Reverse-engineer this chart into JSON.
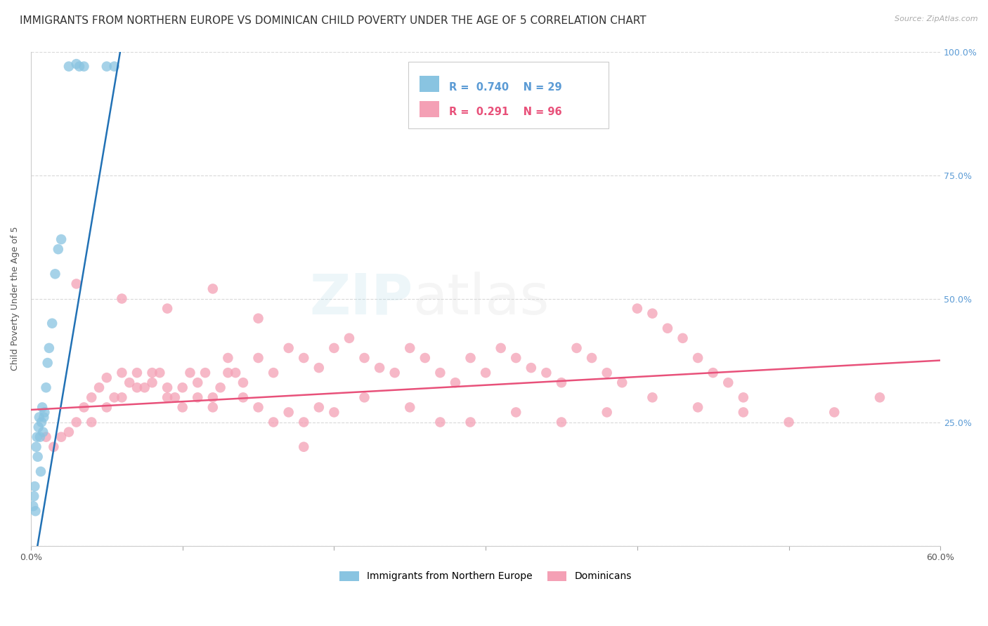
{
  "title": "IMMIGRANTS FROM NORTHERN EUROPE VS DOMINICAN CHILD POVERTY UNDER THE AGE OF 5 CORRELATION CHART",
  "source": "Source: ZipAtlas.com",
  "ylabel": "Child Poverty Under the Age of 5",
  "legend_blue_label": "Immigrants from Northern Europe",
  "legend_pink_label": "Dominicans",
  "legend_blue_R": "R = 0.740",
  "legend_blue_N": "N = 29",
  "legend_pink_R": "R = 0.291",
  "legend_pink_N": "N = 96",
  "watermark": "ZIPatlas",
  "blue_scatter_x": [
    0.15,
    0.2,
    0.25,
    0.3,
    0.35,
    0.4,
    0.45,
    0.5,
    0.55,
    0.6,
    0.65,
    0.7,
    0.75,
    0.8,
    0.85,
    0.9,
    1.0,
    1.1,
    1.2,
    1.4,
    1.6,
    1.8,
    2.0,
    2.5,
    3.0,
    3.5,
    5.0,
    5.5,
    3.2
  ],
  "blue_scatter_y": [
    8.0,
    10.0,
    12.0,
    7.0,
    20.0,
    22.0,
    18.0,
    24.0,
    26.0,
    22.0,
    15.0,
    25.0,
    28.0,
    23.0,
    26.0,
    27.0,
    32.0,
    37.0,
    40.0,
    45.0,
    55.0,
    60.0,
    62.0,
    97.0,
    97.5,
    97.0,
    97.0,
    97.0,
    97.0
  ],
  "pink_scatter_x": [
    1.0,
    1.5,
    2.0,
    2.5,
    3.0,
    3.5,
    4.0,
    4.5,
    5.0,
    5.5,
    6.0,
    6.5,
    7.0,
    7.5,
    8.0,
    8.5,
    9.0,
    9.5,
    10.0,
    10.5,
    11.0,
    11.5,
    12.0,
    12.5,
    13.0,
    13.5,
    14.0,
    15.0,
    16.0,
    17.0,
    18.0,
    19.0,
    20.0,
    21.0,
    22.0,
    23.0,
    24.0,
    25.0,
    26.0,
    27.0,
    28.0,
    29.0,
    30.0,
    31.0,
    32.0,
    33.0,
    34.0,
    35.0,
    36.0,
    37.0,
    38.0,
    39.0,
    40.0,
    41.0,
    42.0,
    43.0,
    44.0,
    45.0,
    46.0,
    47.0,
    4.0,
    5.0,
    6.0,
    7.0,
    8.0,
    9.0,
    10.0,
    11.0,
    12.0,
    13.0,
    14.0,
    15.0,
    16.0,
    17.0,
    18.0,
    19.0,
    20.0,
    22.0,
    25.0,
    27.0,
    29.0,
    32.0,
    35.0,
    38.0,
    41.0,
    44.0,
    47.0,
    50.0,
    53.0,
    56.0,
    3.0,
    6.0,
    9.0,
    12.0,
    15.0,
    18.0
  ],
  "pink_scatter_y": [
    22.0,
    20.0,
    22.0,
    23.0,
    25.0,
    28.0,
    30.0,
    32.0,
    34.0,
    30.0,
    35.0,
    33.0,
    35.0,
    32.0,
    33.0,
    35.0,
    32.0,
    30.0,
    28.0,
    35.0,
    33.0,
    35.0,
    30.0,
    32.0,
    38.0,
    35.0,
    33.0,
    38.0,
    35.0,
    40.0,
    38.0,
    36.0,
    40.0,
    42.0,
    38.0,
    36.0,
    35.0,
    40.0,
    38.0,
    35.0,
    33.0,
    38.0,
    35.0,
    40.0,
    38.0,
    36.0,
    35.0,
    33.0,
    40.0,
    38.0,
    35.0,
    33.0,
    48.0,
    47.0,
    44.0,
    42.0,
    38.0,
    35.0,
    33.0,
    30.0,
    25.0,
    28.0,
    30.0,
    32.0,
    35.0,
    30.0,
    32.0,
    30.0,
    28.0,
    35.0,
    30.0,
    28.0,
    25.0,
    27.0,
    25.0,
    28.0,
    27.0,
    30.0,
    28.0,
    25.0,
    25.0,
    27.0,
    25.0,
    27.0,
    30.0,
    28.0,
    27.0,
    25.0,
    27.0,
    30.0,
    53.0,
    50.0,
    48.0,
    52.0,
    46.0,
    20.0
  ],
  "blue_color": "#89c4e1",
  "pink_color": "#f4a0b5",
  "blue_line_color": "#2171b5",
  "pink_line_color": "#e8517a",
  "background_color": "#ffffff",
  "grid_color": "#d9d9d9",
  "xlim_pct": [
    0,
    60
  ],
  "ylim_pct": [
    0,
    100
  ],
  "title_fontsize": 11,
  "axis_label_fontsize": 9,
  "tick_fontsize": 9,
  "right_tick_color": "#5b9bd5"
}
